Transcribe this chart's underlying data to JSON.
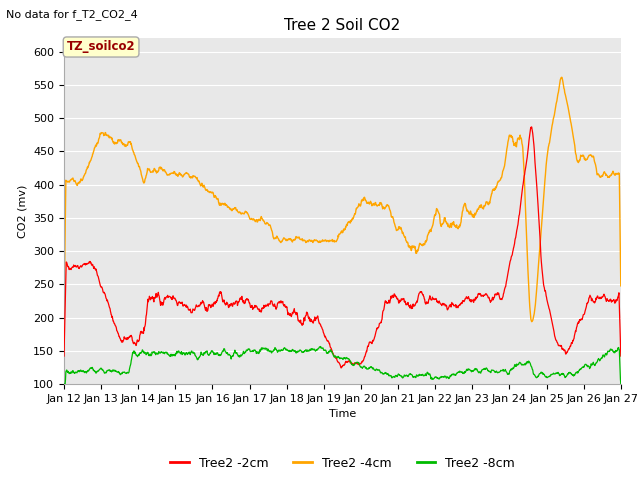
{
  "title": "Tree 2 Soil CO2",
  "no_data_text": "No data for f_T2_CO2_4",
  "xlabel": "Time",
  "ylabel": "CO2 (mv)",
  "ylim": [
    100,
    620
  ],
  "yticks": [
    100,
    150,
    200,
    250,
    300,
    350,
    400,
    450,
    500,
    550,
    600
  ],
  "xtick_labels": [
    "Jan 12",
    "Jan 13",
    "Jan 14",
    "Jan 15",
    "Jan 16",
    "Jan 17",
    "Jan 18",
    "Jan 19",
    "Jan 20",
    "Jan 21",
    "Jan 22",
    "Jan 23",
    "Jan 24",
    "Jan 25",
    "Jan 26",
    "Jan 27"
  ],
  "legend_labels": [
    "Tree2 -2cm",
    "Tree2 -4cm",
    "Tree2 -8cm"
  ],
  "legend_colors": [
    "#ff0000",
    "#ffa500",
    "#00bb00"
  ],
  "line_colors": [
    "#ff0000",
    "#ffa500",
    "#00bb00"
  ],
  "bg_color": "#ffffff",
  "plot_bg_color": "#e8e8e8",
  "annotation_box_color": "#ffffcc",
  "annotation_text": "TZ_soilco2",
  "annotation_text_color": "#990000",
  "title_fontsize": 11,
  "axis_fontsize": 8,
  "legend_fontsize": 9
}
